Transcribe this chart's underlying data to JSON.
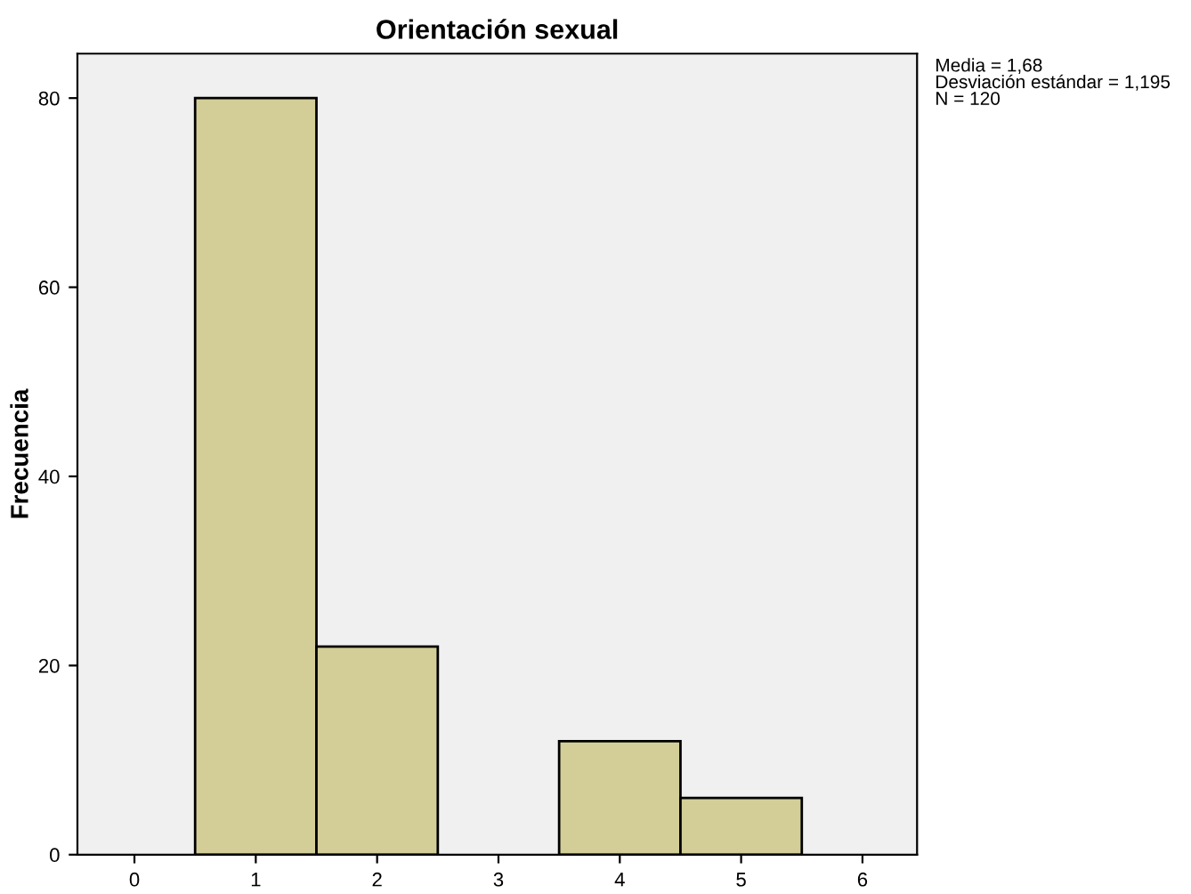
{
  "chart_data": {
    "type": "histogram",
    "title": "Orientación sexual",
    "ylabel": "Frecuencia",
    "bins": [
      0.5,
      1.5,
      2.5,
      3.5,
      4.5,
      5.5
    ],
    "values": [
      80,
      22,
      0,
      12,
      6
    ],
    "color": "#d3ce97",
    "xlim": [
      -0.47,
      6.45
    ],
    "xticks": [
      0,
      1,
      2,
      3,
      4,
      5,
      6
    ],
    "ylim": [
      0,
      84.7
    ],
    "yticks": [
      0,
      20,
      40,
      60,
      80
    ],
    "grid": false,
    "annotations": [
      "Media = 1,68\nDesviación estándar = 1,195\nN = 120"
    ]
  }
}
